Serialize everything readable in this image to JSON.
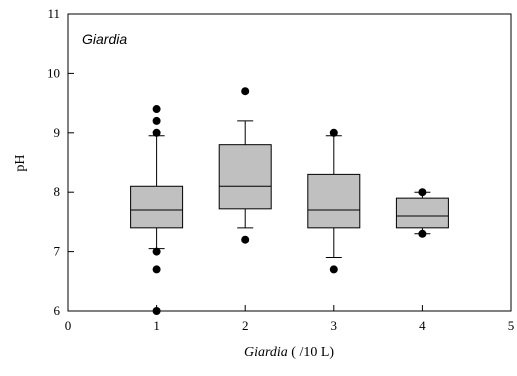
{
  "chart_data": {
    "type": "box",
    "title": "Giardia",
    "xlabel": {
      "italic": "Giardia",
      "regular": " ( /10 L)"
    },
    "ylabel": "pH",
    "xlim": [
      0,
      5
    ],
    "ylim": [
      6,
      11
    ],
    "xticks": [
      0,
      1,
      2,
      3,
      4,
      5
    ],
    "yticks": [
      6,
      7,
      8,
      9,
      10,
      11
    ],
    "xtick_labels": [
      "0",
      "1",
      "2",
      "3",
      "4",
      "5"
    ],
    "ytick_labels": [
      "6",
      "7",
      "8",
      "9",
      "10",
      "11"
    ],
    "grid": false,
    "box_fill": "#c0c0c0",
    "stroke": "#000000",
    "boxes": [
      {
        "x": 1,
        "whisker_low": 7.05,
        "q1": 7.4,
        "median": 7.7,
        "q3": 8.1,
        "whisker_high": 8.95,
        "outliers": [
          9.4,
          9.2,
          9.0,
          7.0,
          6.7,
          6.0
        ]
      },
      {
        "x": 2,
        "whisker_low": 7.4,
        "q1": 7.72,
        "median": 8.1,
        "q3": 8.8,
        "whisker_high": 9.2,
        "outliers": [
          9.7,
          7.2
        ]
      },
      {
        "x": 3,
        "whisker_low": 6.9,
        "q1": 7.4,
        "median": 7.7,
        "q3": 8.3,
        "whisker_high": 8.95,
        "outliers": [
          9.0,
          6.7
        ]
      },
      {
        "x": 4,
        "whisker_low": 7.3,
        "q1": 7.4,
        "median": 7.6,
        "q3": 7.9,
        "whisker_high": 8.0,
        "outliers": [
          8.0,
          7.3
        ]
      }
    ]
  }
}
